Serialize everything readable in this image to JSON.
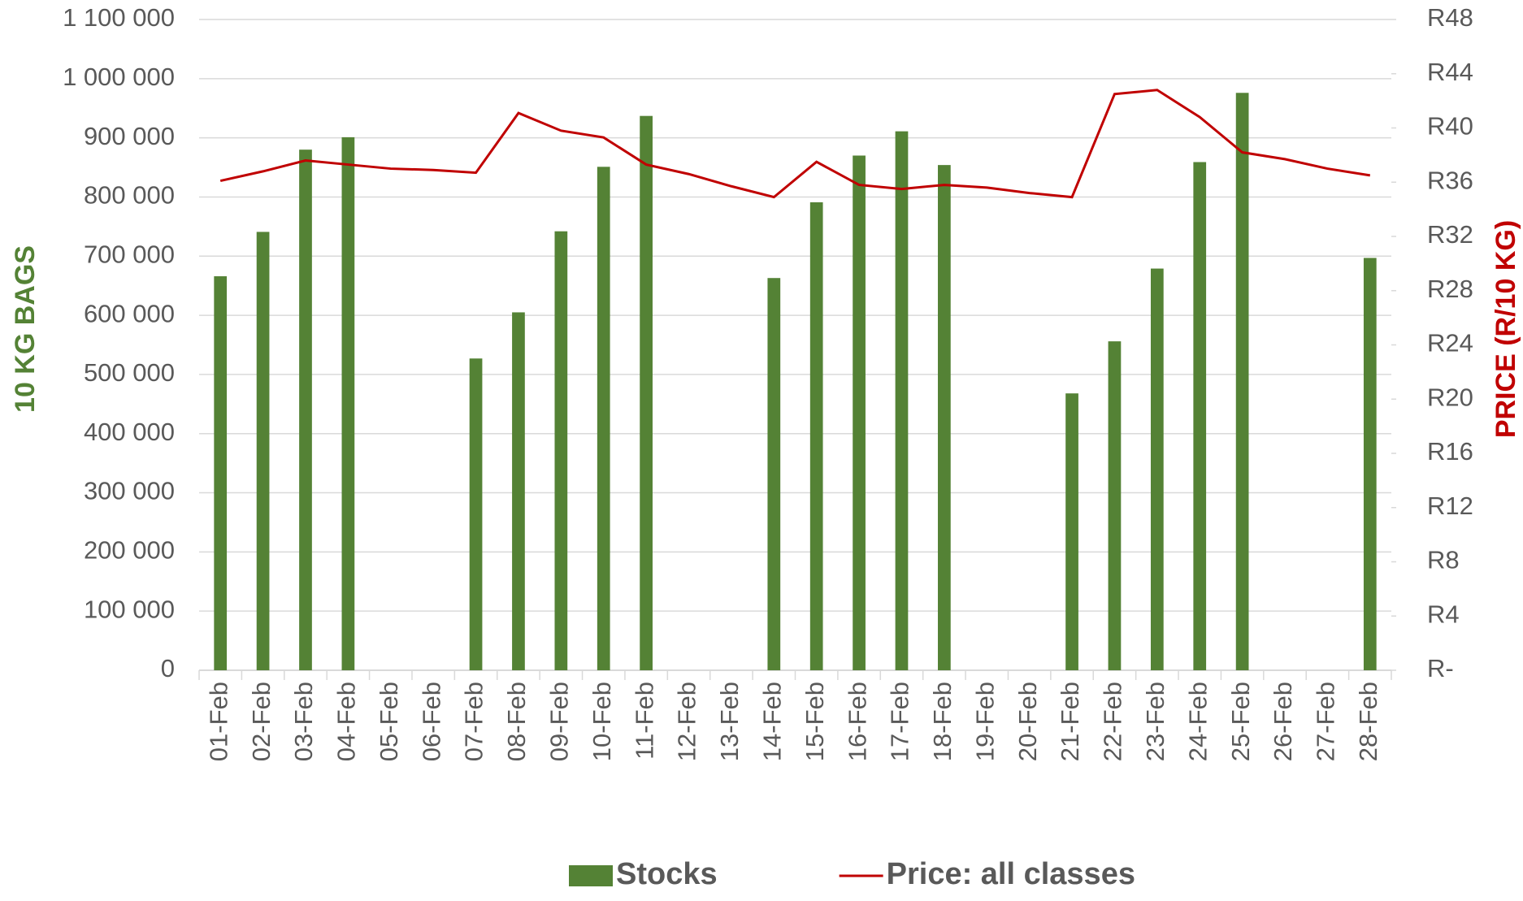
{
  "chart_data": {
    "type": "bar_line",
    "y_label": "10 KG BAGS",
    "y2_label": "PRICE (R/10 KG)",
    "categories": [
      "01-Feb",
      "02-Feb",
      "03-Feb",
      "04-Feb",
      "05-Feb",
      "06-Feb",
      "07-Feb",
      "08-Feb",
      "09-Feb",
      "10-Feb",
      "11-Feb",
      "12-Feb",
      "13-Feb",
      "14-Feb",
      "15-Feb",
      "16-Feb",
      "17-Feb",
      "18-Feb",
      "19-Feb",
      "20-Feb",
      "21-Feb",
      "22-Feb",
      "23-Feb",
      "24-Feb",
      "25-Feb",
      "26-Feb",
      "27-Feb",
      "28-Feb"
    ],
    "series": [
      {
        "name": "Stocks",
        "type": "bar",
        "color": "#548235",
        "axis": "y",
        "values": [
          666000,
          741000,
          880000,
          901000,
          null,
          null,
          527000,
          605000,
          742000,
          851000,
          937000,
          null,
          null,
          663000,
          791000,
          870000,
          911000,
          854000,
          null,
          null,
          468000,
          556000,
          679000,
          859000,
          976000,
          null,
          null,
          697000
        ]
      },
      {
        "name": "Price: all classes",
        "type": "line",
        "color": "#c00000",
        "axis": "y2",
        "values": [
          36.1,
          36.8,
          37.6,
          37.3,
          37.0,
          36.9,
          36.7,
          41.1,
          39.8,
          39.3,
          37.3,
          36.6,
          35.7,
          34.9,
          37.5,
          35.8,
          35.5,
          35.8,
          35.6,
          35.2,
          34.9,
          42.5,
          42.8,
          40.8,
          38.2,
          37.7,
          37.0,
          36.5
        ]
      }
    ],
    "ylim": [
      0,
      1100000
    ],
    "yticks": [
      0,
      {
        "value": 100000,
        "label": "100 000"
      },
      {
        "value": 200000,
        "label": "200 000"
      },
      {
        "value": 300000,
        "label": "300 000"
      },
      {
        "value": 400000,
        "label": "400 000"
      },
      {
        "value": 500000,
        "label": "500 000"
      },
      {
        "value": 600000,
        "label": "600 000"
      },
      {
        "value": 700000,
        "label": "700 000"
      },
      {
        "value": 800000,
        "label": "800 000"
      },
      {
        "value": 900000,
        "label": "900 000"
      },
      {
        "value": 1000000,
        "label": "1 000 000"
      },
      {
        "value": 1100000,
        "label": "1 100 000"
      }
    ],
    "y2lim": [
      0,
      48
    ],
    "y2ticks": [
      {
        "value": 0,
        "label": "R-"
      },
      {
        "value": 4,
        "label": "R4"
      },
      {
        "value": 8,
        "label": "R8"
      },
      {
        "value": 12,
        "label": "R12"
      },
      {
        "value": 16,
        "label": "R16"
      },
      {
        "value": 20,
        "label": "R20"
      },
      {
        "value": 24,
        "label": "R24"
      },
      {
        "value": 28,
        "label": "R28"
      },
      {
        "value": 32,
        "label": "R32"
      },
      {
        "value": 36,
        "label": "R36"
      },
      {
        "value": 40,
        "label": "R40"
      },
      {
        "value": 44,
        "label": "R44"
      },
      {
        "value": 48,
        "label": "R48"
      }
    ],
    "grid": true,
    "legend": "bottom"
  }
}
